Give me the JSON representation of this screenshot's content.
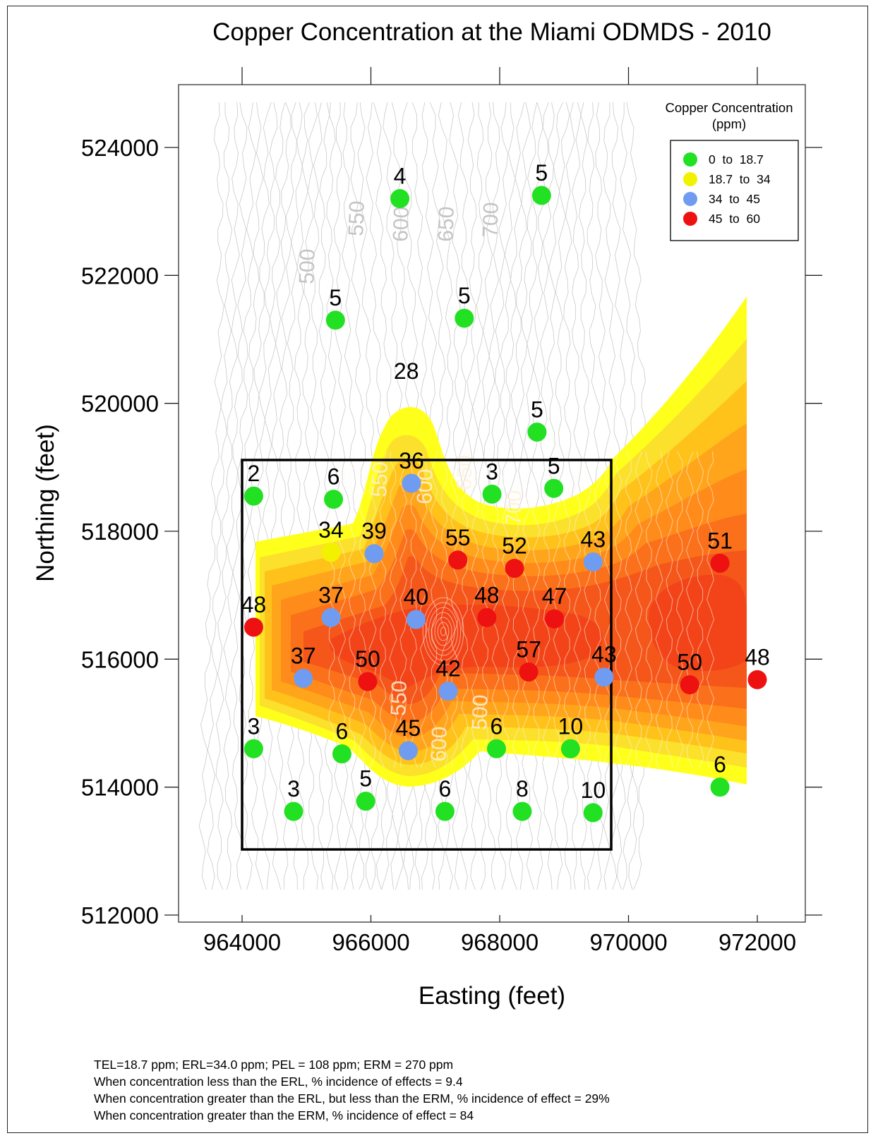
{
  "chart_data": {
    "type": "scatter",
    "title": "Copper Concentration at the Miami ODMDS - 2010",
    "xlabel": "Easting (feet)",
    "ylabel": "Northing (feet)",
    "xlim": [
      963000,
      973000
    ],
    "ylim": [
      512000,
      525000
    ],
    "xticks": [
      964000,
      966000,
      968000,
      970000,
      972000
    ],
    "xtick_labels": [
      "964000",
      "966000",
      "968000",
      "970000",
      "972000"
    ],
    "yticks": [
      512000,
      514000,
      516000,
      518000,
      520000,
      522000,
      524000
    ],
    "ytick_labels": [
      "512000",
      "514000",
      "516000",
      "518000",
      "520000",
      "522000",
      "524000"
    ],
    "grid": false,
    "legend_position": "top-right",
    "legend": {
      "title": "Copper Concentration",
      "subtitle": "(ppm)",
      "classes": [
        {
          "label": "0  to  18.7",
          "min": 0,
          "max": 18.7,
          "color": "#22e022"
        },
        {
          "label": "18.7  to  34",
          "min": 18.7,
          "max": 34,
          "color": "#f2f200"
        },
        {
          "label": "34  to  45",
          "min": 34,
          "max": 45,
          "color": "#6f9cf0"
        },
        {
          "label": "45  to  60",
          "min": 45,
          "max": 60,
          "color": "#ee1111"
        }
      ]
    },
    "contour_labels": [
      "500",
      "550",
      "600",
      "650",
      "700",
      "550",
      "600",
      "650",
      "700",
      "550",
      "600",
      "500"
    ],
    "points": [
      {
        "x": 966450,
        "y": 523200,
        "label": "4",
        "value": 4
      },
      {
        "x": 968650,
        "y": 523250,
        "label": "5",
        "value": 5
      },
      {
        "x": 965450,
        "y": 521300,
        "label": "5",
        "value": 5
      },
      {
        "x": 967450,
        "y": 521330,
        "label": "5",
        "value": 5
      },
      {
        "x": 968580,
        "y": 519550,
        "label": "5",
        "value": 5
      },
      {
        "x": 966550,
        "y": 520150,
        "label": "28",
        "value": 28
      },
      {
        "x": 964180,
        "y": 518550,
        "label": "2",
        "value": 2
      },
      {
        "x": 965420,
        "y": 518500,
        "label": "6",
        "value": 6
      },
      {
        "x": 966630,
        "y": 518750,
        "label": "36",
        "value": 36
      },
      {
        "x": 967880,
        "y": 518580,
        "label": "3",
        "value": 3
      },
      {
        "x": 968840,
        "y": 518670,
        "label": "5",
        "value": 5
      },
      {
        "x": 965380,
        "y": 517670,
        "label": "34",
        "value": 34
      },
      {
        "x": 966050,
        "y": 517650,
        "label": "39",
        "value": 39
      },
      {
        "x": 967350,
        "y": 517550,
        "label": "55",
        "value": 55
      },
      {
        "x": 968230,
        "y": 517420,
        "label": "52",
        "value": 52
      },
      {
        "x": 969450,
        "y": 517520,
        "label": "43",
        "value": 43
      },
      {
        "x": 971420,
        "y": 517500,
        "label": "51",
        "value": 51
      },
      {
        "x": 964180,
        "y": 516500,
        "label": "48",
        "value": 48
      },
      {
        "x": 965380,
        "y": 516650,
        "label": "37",
        "value": 37
      },
      {
        "x": 966700,
        "y": 516620,
        "label": "40",
        "value": 40
      },
      {
        "x": 967800,
        "y": 516650,
        "label": "48",
        "value": 48
      },
      {
        "x": 968850,
        "y": 516630,
        "label": "47",
        "value": 47
      },
      {
        "x": 964950,
        "y": 515700,
        "label": "37",
        "value": 37
      },
      {
        "x": 965950,
        "y": 515650,
        "label": "50",
        "value": 50
      },
      {
        "x": 967200,
        "y": 515500,
        "label": "42",
        "value": 42
      },
      {
        "x": 968450,
        "y": 515800,
        "label": "57",
        "value": 57
      },
      {
        "x": 969620,
        "y": 515720,
        "label": "43",
        "value": 43
      },
      {
        "x": 970950,
        "y": 515600,
        "label": "50",
        "value": 50
      },
      {
        "x": 972000,
        "y": 515680,
        "label": "48",
        "value": 48
      },
      {
        "x": 964180,
        "y": 514600,
        "label": "3",
        "value": 3
      },
      {
        "x": 965550,
        "y": 514520,
        "label": "6",
        "value": 6
      },
      {
        "x": 966580,
        "y": 514570,
        "label": "45",
        "value": 45
      },
      {
        "x": 967950,
        "y": 514600,
        "label": "6",
        "value": 6
      },
      {
        "x": 969100,
        "y": 514600,
        "label": "10",
        "value": 10
      },
      {
        "x": 971420,
        "y": 514000,
        "label": "6",
        "value": 6
      },
      {
        "x": 964800,
        "y": 513620,
        "label": "3",
        "value": 3
      },
      {
        "x": 965920,
        "y": 513780,
        "label": "5",
        "value": 5
      },
      {
        "x": 967150,
        "y": 513620,
        "label": "6",
        "value": 6
      },
      {
        "x": 968350,
        "y": 513620,
        "label": "8",
        "value": 8
      },
      {
        "x": 969450,
        "y": 513600,
        "label": "10",
        "value": 10
      }
    ]
  },
  "notes": [
    "TEL=18.7 ppm; ERL=34.0 ppm; PEL = 108 ppm; ERM = 270 ppm",
    "When concentration less than the ERL, % incidence of effects = 9.4",
    "When concentration greater than the ERL, but less than the ERM, % incidence of effect = 29%",
    "When concentration greater than the ERM, % incidence of effect = 84"
  ]
}
